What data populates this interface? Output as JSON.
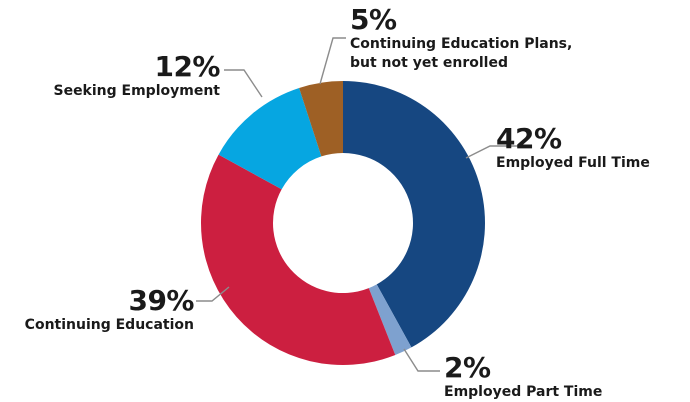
{
  "chart_data": {
    "type": "pie",
    "donut": true,
    "slices": [
      {
        "label": "Employed Full Time",
        "value": 42,
        "value_label": "42%",
        "color": "#164781"
      },
      {
        "label": "Employed Part Time",
        "value": 2,
        "value_label": "2%",
        "color": "#7ea1cf"
      },
      {
        "label": "Continuing Education",
        "value": 39,
        "value_label": "39%",
        "color": "#cc1f40"
      },
      {
        "label": "Seeking Employment",
        "value": 12,
        "value_label": "12%",
        "color": "#06a6e1"
      },
      {
        "label": "Continuing Education Plans,\nbut not yet enrolled",
        "value": 5,
        "value_label": "5%",
        "color": "#9e6025"
      }
    ],
    "start_angle_deg": 0,
    "direction": "clockwise",
    "leader_line_color": "#8c8c8c"
  }
}
